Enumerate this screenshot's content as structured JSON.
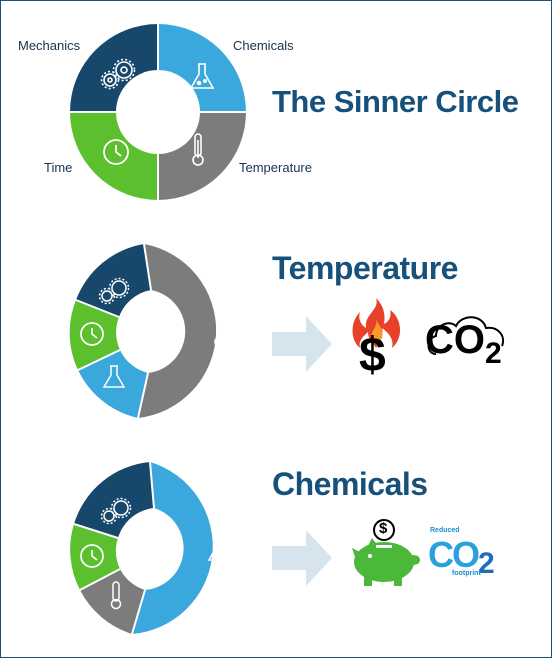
{
  "sinner_circle": {
    "title": "The Sinner Circle",
    "labels": {
      "mechanics": "Mechanics",
      "chemicals": "Chemicals",
      "time": "Time",
      "temperature": "Temperature"
    },
    "colors": {
      "mechanics": "#17476b",
      "chemicals": "#3aa8dd",
      "time": "#5cbf2e",
      "temperature": "#7c7c7c"
    }
  },
  "temperature_section": {
    "title": "Temperature",
    "co2_text": "CO",
    "co2_sub": "2",
    "dollar": "$"
  },
  "chemicals_section": {
    "title": "Chemicals",
    "reduced_text": "Reduced",
    "co2_text": "CO",
    "co2_sub": "2",
    "footprint_text": "footprint",
    "dollar": "$"
  },
  "icons": [
    "gears-icon",
    "flask-icon",
    "clock-icon",
    "thermometer-icon",
    "arrow-icon",
    "flame-dollar-icon",
    "co2-cloud-icon",
    "piggy-bank-icon",
    "reduced-co2-icon"
  ]
}
